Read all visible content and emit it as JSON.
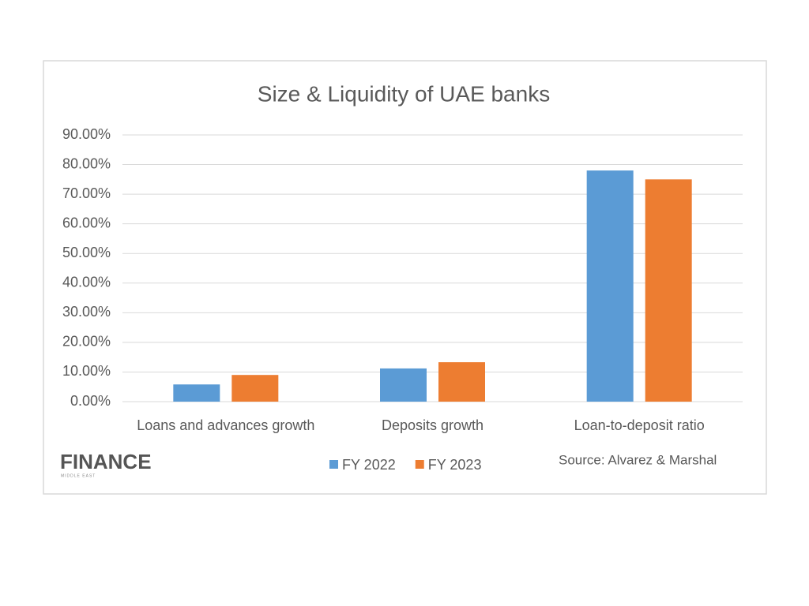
{
  "chart_data": {
    "type": "bar",
    "title": "Size & Liquidity of UAE banks",
    "categories": [
      "Loans and advances growth",
      "Deposits growth",
      "Loan-to-deposit ratio"
    ],
    "series": [
      {
        "name": "FY 2022",
        "color": "#5b9bd5",
        "values": [
          5.8,
          11.2,
          78
        ]
      },
      {
        "name": "FY 2023",
        "color": "#ed7d31",
        "values": [
          9.0,
          13.3,
          75
        ]
      }
    ],
    "ylim": [
      0,
      90
    ],
    "yticks": [
      {
        "value": 0,
        "label": "0.00%"
      },
      {
        "value": 10,
        "label": "10.00%"
      },
      {
        "value": 20,
        "label": "20.00%"
      },
      {
        "value": 30,
        "label": "30.00%"
      },
      {
        "value": 40,
        "label": "40.00%"
      },
      {
        "value": 50,
        "label": "50.00%"
      },
      {
        "value": 60,
        "label": "60.00%"
      },
      {
        "value": 70,
        "label": "70.00%"
      },
      {
        "value": 80,
        "label": "80.00%"
      },
      {
        "value": 90,
        "label": "90.00%"
      }
    ],
    "grid": true,
    "legend": "bottom",
    "source": "Source: Alvarez & Marshal",
    "logo": "FINANCE",
    "logo_sub": "MIDDLE EAST"
  }
}
